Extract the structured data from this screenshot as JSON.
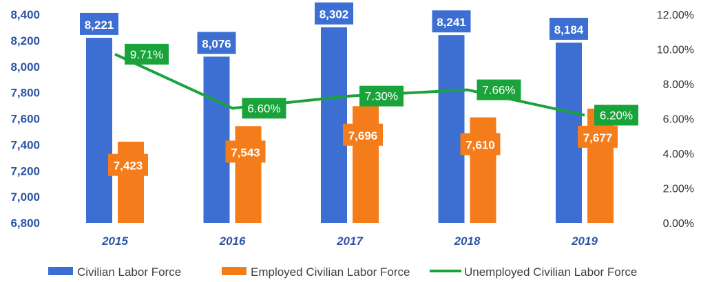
{
  "chart_data": {
    "type": "bar",
    "categories": [
      "2015",
      "2016",
      "2017",
      "2018",
      "2019"
    ],
    "series": [
      {
        "name": "Civilian Labor Force",
        "type": "bar",
        "axis": "left",
        "color": "#3c6fd1",
        "values": [
          8221,
          8076,
          8302,
          8241,
          8184
        ],
        "labels": [
          "8,221",
          "8,076",
          "8,302",
          "8,241",
          "8,184"
        ]
      },
      {
        "name": "Employed Civilian Labor Force",
        "type": "bar",
        "axis": "left",
        "color": "#f47c1a",
        "values": [
          7423,
          7543,
          7696,
          7610,
          7677
        ],
        "labels": [
          "7,423",
          "7,543",
          "7,696",
          "7,610",
          "7,677"
        ]
      },
      {
        "name": "Unemployed Civilian Labor Force",
        "type": "line",
        "axis": "right",
        "color": "#1aa33a",
        "values": [
          9.71,
          6.6,
          7.3,
          7.66,
          6.2
        ],
        "labels": [
          "9.71%",
          "6.60%",
          "7.30%",
          "7.66%",
          "6.20%"
        ]
      }
    ],
    "y_left": {
      "range": [
        6800,
        8400
      ],
      "ticks": [
        "6,800",
        "7,000",
        "7,200",
        "7,400",
        "7,600",
        "7,800",
        "8,000",
        "8,200",
        "8,400"
      ]
    },
    "y_right": {
      "range": [
        0,
        12
      ],
      "ticks": [
        "0.00%",
        "2.00%",
        "4.00%",
        "6.00%",
        "8.00%",
        "10.00%",
        "12.00%"
      ]
    },
    "legend": "bottom",
    "grid": false
  }
}
